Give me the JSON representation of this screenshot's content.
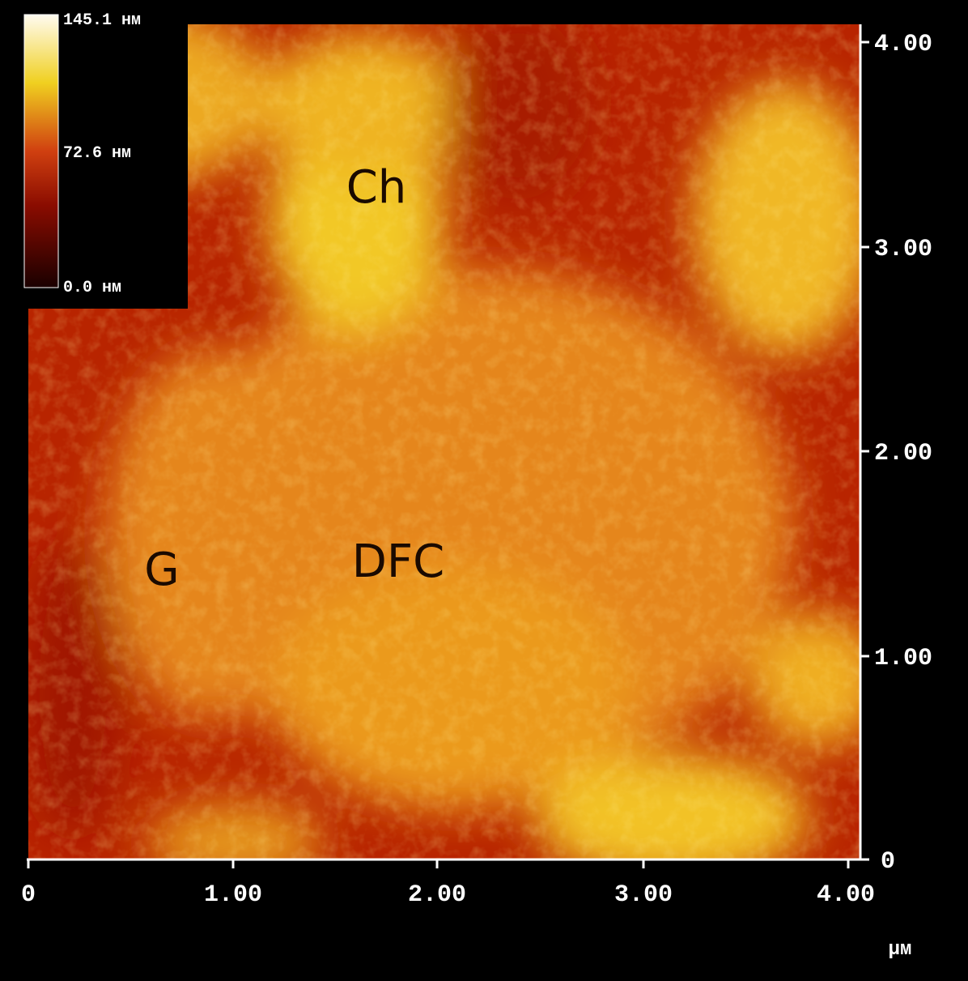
{
  "image": {
    "colorbar": {
      "labels": [
        "145.1 нм",
        "72.6 нм",
        "0.0 нм"
      ]
    },
    "x_axis": {
      "ticks": [
        "0",
        "1.00",
        "2.00",
        "3.00",
        "4.00"
      ],
      "unit": "µм"
    },
    "y_axis": {
      "ticks": [
        "4.00",
        "3.00",
        "2.00",
        "1.00",
        "0"
      ]
    },
    "annotations": [
      "Ch",
      "DFC",
      "G"
    ]
  }
}
